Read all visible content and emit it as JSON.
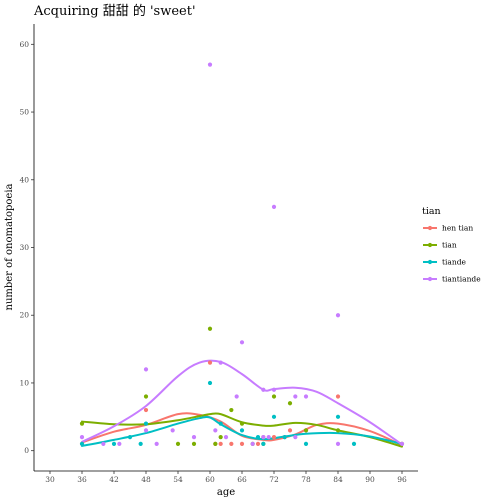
{
  "chart_data": {
    "type": "scatter",
    "title": "Acquiring 甜甜 的 'sweet'",
    "xlabel": "age",
    "ylabel": "number of onomatopoeia",
    "xlim": [
      27,
      99
    ],
    "ylim": [
      -3,
      63
    ],
    "x_ticks": [
      30,
      36,
      42,
      48,
      54,
      60,
      66,
      72,
      78,
      84,
      90,
      96
    ],
    "y_ticks": [
      0,
      10,
      20,
      30,
      40,
      50,
      60
    ],
    "grid": false,
    "legend": {
      "title": "tian",
      "position": "right"
    },
    "series": [
      {
        "name": "hen tian",
        "color": "#F8766D",
        "points": [
          [
            36,
            1
          ],
          [
            48,
            6
          ],
          [
            60,
            13
          ],
          [
            61,
            1
          ],
          [
            62,
            1
          ],
          [
            64,
            1
          ],
          [
            66,
            1
          ],
          [
            69,
            1
          ],
          [
            70,
            2
          ],
          [
            72,
            2
          ],
          [
            74,
            2
          ],
          [
            75,
            3
          ],
          [
            78,
            3
          ],
          [
            84,
            8
          ]
        ],
        "trend": [
          [
            36,
            1.2
          ],
          [
            42,
            2.8
          ],
          [
            48,
            3.8
          ],
          [
            54,
            5.4
          ],
          [
            58,
            5.3
          ],
          [
            62,
            4.3
          ],
          [
            66,
            2.2
          ],
          [
            70,
            1.6
          ],
          [
            72,
            1.6
          ],
          [
            76,
            2.4
          ],
          [
            80,
            3.8
          ],
          [
            84,
            4.0
          ],
          [
            90,
            2.9
          ],
          [
            96,
            0.8
          ]
        ]
      },
      {
        "name": "tian",
        "color": "#7CAE00",
        "points": [
          [
            36,
            4
          ],
          [
            48,
            8
          ],
          [
            54,
            1
          ],
          [
            57,
            1
          ],
          [
            60,
            18
          ],
          [
            61,
            1
          ],
          [
            62,
            2
          ],
          [
            64,
            6
          ],
          [
            66,
            4
          ],
          [
            68,
            1
          ],
          [
            70,
            1
          ],
          [
            72,
            8
          ],
          [
            75,
            7
          ],
          [
            78,
            3
          ],
          [
            84,
            3
          ],
          [
            96,
            1
          ]
        ],
        "trend": [
          [
            36,
            4.3
          ],
          [
            42,
            3.9
          ],
          [
            48,
            3.9
          ],
          [
            54,
            4.5
          ],
          [
            58,
            5.1
          ],
          [
            60,
            5.4
          ],
          [
            62,
            5.4
          ],
          [
            66,
            4.2
          ],
          [
            70,
            3.7
          ],
          [
            72,
            3.7
          ],
          [
            76,
            4.1
          ],
          [
            80,
            3.8
          ],
          [
            84,
            3.0
          ],
          [
            90,
            2.0
          ],
          [
            96,
            0.6
          ]
        ]
      },
      {
        "name": "tiande",
        "color": "#00BFC4",
        "points": [
          [
            36,
            1
          ],
          [
            42,
            1
          ],
          [
            45,
            2
          ],
          [
            47,
            1
          ],
          [
            48,
            4
          ],
          [
            60,
            10
          ],
          [
            62,
            4
          ],
          [
            66,
            3
          ],
          [
            69,
            2
          ],
          [
            70,
            1
          ],
          [
            72,
            5
          ],
          [
            74,
            2
          ],
          [
            78,
            1
          ],
          [
            84,
            5
          ],
          [
            87,
            1
          ]
        ],
        "trend": [
          [
            36,
            0.7
          ],
          [
            42,
            1.6
          ],
          [
            48,
            2.6
          ],
          [
            54,
            4.0
          ],
          [
            58,
            4.8
          ],
          [
            60,
            4.9
          ],
          [
            62,
            3.9
          ],
          [
            66,
            2.3
          ],
          [
            70,
            1.7
          ],
          [
            74,
            2.1
          ],
          [
            78,
            2.5
          ],
          [
            84,
            2.6
          ],
          [
            90,
            2.1
          ],
          [
            96,
            1.0
          ]
        ]
      },
      {
        "name": "tiantiande",
        "color": "#C77CFF",
        "points": [
          [
            36,
            2
          ],
          [
            40,
            1
          ],
          [
            43,
            1
          ],
          [
            48,
            12
          ],
          [
            48,
            3
          ],
          [
            50,
            1
          ],
          [
            53,
            3
          ],
          [
            57,
            2
          ],
          [
            60,
            57
          ],
          [
            61,
            3
          ],
          [
            62,
            13
          ],
          [
            63,
            2
          ],
          [
            65,
            8
          ],
          [
            66,
            16
          ],
          [
            68,
            1
          ],
          [
            70,
            2
          ],
          [
            70,
            9
          ],
          [
            71,
            2
          ],
          [
            72,
            36
          ],
          [
            72,
            9
          ],
          [
            76,
            8
          ],
          [
            76,
            2
          ],
          [
            78,
            8
          ],
          [
            84,
            20
          ],
          [
            84,
            1
          ],
          [
            96,
            1
          ]
        ],
        "trend": [
          [
            36,
            1.3
          ],
          [
            42,
            3.6
          ],
          [
            48,
            6.6
          ],
          [
            54,
            11.0
          ],
          [
            58,
            13.0
          ],
          [
            62,
            13.1
          ],
          [
            66,
            11.3
          ],
          [
            70,
            9.0
          ],
          [
            72,
            9.1
          ],
          [
            76,
            9.3
          ],
          [
            80,
            8.7
          ],
          [
            84,
            7.0
          ],
          [
            90,
            4.2
          ],
          [
            96,
            0.9
          ]
        ]
      }
    ]
  }
}
